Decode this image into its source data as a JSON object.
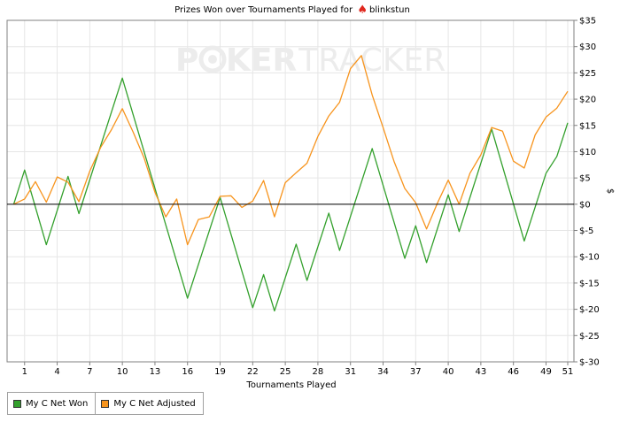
{
  "chart_data": {
    "type": "line",
    "title_prefix": "Prizes Won over Tournaments Played for",
    "title_player": "blinkstun",
    "title_icon": "spade-icon",
    "watermark_left": "P",
    "watermark_mid": "KER",
    "watermark_right": "TRACKER",
    "xlabel": "Tournaments Played",
    "ylabel": "$",
    "xlim": [
      0,
      51
    ],
    "ylim": [
      -30,
      35
    ],
    "x_ticks": [
      1,
      4,
      7,
      10,
      13,
      16,
      19,
      22,
      25,
      28,
      31,
      34,
      37,
      40,
      43,
      46,
      49,
      51
    ],
    "y_ticks": [
      {
        "v": 35,
        "label": "$35"
      },
      {
        "v": 30,
        "label": "$30"
      },
      {
        "v": 25,
        "label": "$25"
      },
      {
        "v": 20,
        "label": "$20"
      },
      {
        "v": 15,
        "label": "$15"
      },
      {
        "v": 10,
        "label": "$10"
      },
      {
        "v": 5,
        "label": "$5"
      },
      {
        "v": 0,
        "label": "$0"
      },
      {
        "v": -5,
        "label": "$-5"
      },
      {
        "v": -10,
        "label": "$-10"
      },
      {
        "v": -15,
        "label": "$-15"
      },
      {
        "v": -20,
        "label": "$-20"
      },
      {
        "v": -25,
        "label": "$-25"
      },
      {
        "v": -30,
        "label": "$-30"
      }
    ],
    "grid": true,
    "legend_position": "bottom-left",
    "colors": {
      "net_won": "#33a02c",
      "net_adjusted": "#f7941d",
      "zero_line": "#000000",
      "grid": "#e6e6e6",
      "watermark": "#ececec"
    },
    "series": [
      {
        "name": "My C Net Won",
        "x": [
          0,
          1,
          3,
          5,
          6,
          10,
          16,
          19,
          22,
          23,
          24,
          26,
          27,
          29,
          30,
          33,
          36,
          37,
          38,
          40,
          41,
          44,
          47,
          49,
          50,
          51
        ],
        "values": [
          0,
          6.5,
          -7.7,
          5.3,
          -1.8,
          24.0,
          -17.9,
          1.3,
          -19.7,
          -13.4,
          -20.3,
          -7.6,
          -14.5,
          -1.7,
          -8.8,
          10.6,
          -10.3,
          -4.1,
          -11.1,
          1.8,
          -5.2,
          14.3,
          -7.0,
          5.9,
          9.1,
          15.5
        ]
      },
      {
        "name": "My C Net Adjusted",
        "x": [
          0,
          1,
          2,
          3,
          4,
          5,
          6,
          7,
          8,
          9,
          10,
          11,
          12,
          13,
          14,
          15,
          16,
          17,
          18,
          19,
          20,
          21,
          22,
          23,
          24,
          25,
          26,
          27,
          28,
          29,
          30,
          31,
          32,
          33,
          34,
          35,
          36,
          37,
          38,
          39,
          40,
          41,
          42,
          43,
          44,
          45,
          46,
          47,
          48,
          49,
          50,
          51
        ],
        "values": [
          0,
          1.0,
          4.3,
          0.4,
          5.2,
          4.2,
          0.5,
          6.3,
          10.8,
          14.2,
          18.2,
          13.7,
          8.8,
          2.3,
          -2.4,
          1.0,
          -7.7,
          -2.9,
          -2.4,
          1.5,
          1.6,
          -0.6,
          0.6,
          4.5,
          -2.4,
          4.1,
          6.0,
          7.8,
          12.9,
          16.8,
          19.4,
          25.8,
          28.3,
          20.8,
          14.6,
          8.2,
          3.0,
          0.3,
          -4.7,
          0.2,
          4.6,
          0.0,
          5.9,
          9.4,
          14.6,
          13.9,
          8.2,
          6.9,
          13.2,
          16.6,
          18.3,
          21.5
        ]
      }
    ]
  }
}
